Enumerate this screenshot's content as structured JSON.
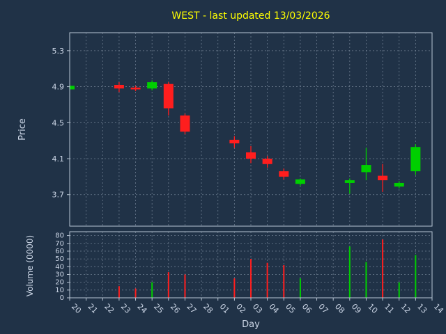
{
  "colors": {
    "background": "#203247",
    "title": "#ffff00",
    "text": "#ccd6e6",
    "grid": "#8494a6",
    "spine": "#b9c6d4",
    "up": "#00cf00",
    "down": "#ff1e1e"
  },
  "chart_data": {
    "type": "candlestick",
    "title": "WEST - last updated 13/03/2026",
    "xlabel": "Day",
    "ylabel_price": "Price",
    "ylabel_volume": "Volume (0000)",
    "x_categories": [
      "20",
      "21",
      "22",
      "23",
      "24",
      "25",
      "26",
      "27",
      "28",
      "01",
      "02",
      "03",
      "04",
      "05",
      "06",
      "07",
      "08",
      "09",
      "10",
      "11",
      "12",
      "13",
      "14"
    ],
    "price_axis": {
      "ticks": [
        3.7,
        4.1,
        4.5,
        4.9,
        5.3
      ],
      "range": [
        3.35,
        5.5
      ]
    },
    "volume_axis": {
      "ticks": [
        0,
        10,
        20,
        30,
        40,
        50,
        60,
        70,
        80
      ],
      "range": [
        0,
        85
      ]
    },
    "candles": [
      {
        "day": "20",
        "open": 4.87,
        "high": 4.92,
        "low": 4.86,
        "close": 4.91,
        "volume": 0
      },
      {
        "day": "23",
        "open": 4.92,
        "high": 4.95,
        "low": 4.84,
        "close": 4.88,
        "volume": 15
      },
      {
        "day": "24",
        "open": 4.89,
        "high": 4.91,
        "low": 4.85,
        "close": 4.87,
        "volume": 12
      },
      {
        "day": "25",
        "open": 4.88,
        "high": 4.97,
        "low": 4.86,
        "close": 4.95,
        "volume": 20
      },
      {
        "day": "26",
        "open": 4.93,
        "high": 4.95,
        "low": 4.58,
        "close": 4.66,
        "volume": 33
      },
      {
        "day": "27",
        "open": 4.58,
        "high": 4.6,
        "low": 4.37,
        "close": 4.4,
        "volume": 30
      },
      {
        "day": "02",
        "open": 4.31,
        "high": 4.35,
        "low": 4.22,
        "close": 4.27,
        "volume": 25
      },
      {
        "day": "03",
        "open": 4.17,
        "high": 4.24,
        "low": 4.05,
        "close": 4.1,
        "volume": 50
      },
      {
        "day": "04",
        "open": 4.1,
        "high": 4.13,
        "low": 4.0,
        "close": 4.04,
        "volume": 45
      },
      {
        "day": "05",
        "open": 3.96,
        "high": 3.99,
        "low": 3.87,
        "close": 3.9,
        "volume": 42
      },
      {
        "day": "06",
        "open": 3.82,
        "high": 3.88,
        "low": 3.8,
        "close": 3.87,
        "volume": 25
      },
      {
        "day": "09",
        "open": 3.83,
        "high": 3.88,
        "low": 3.71,
        "close": 3.86,
        "volume": 66
      },
      {
        "day": "10",
        "open": 3.95,
        "high": 4.22,
        "low": 3.86,
        "close": 4.03,
        "volume": 46
      },
      {
        "day": "11",
        "open": 3.91,
        "high": 4.04,
        "low": 3.73,
        "close": 3.86,
        "volume": 75
      },
      {
        "day": "12",
        "open": 3.79,
        "high": 3.85,
        "low": 3.77,
        "close": 3.83,
        "volume": 20
      },
      {
        "day": "13",
        "open": 3.96,
        "high": 4.26,
        "low": 3.92,
        "close": 4.23,
        "volume": 55
      }
    ]
  }
}
